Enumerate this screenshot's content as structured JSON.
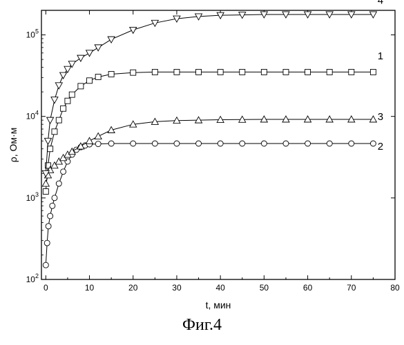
{
  "figure_caption": "Фиг.4",
  "chart_data": {
    "type": "scatter",
    "xlabel": "t, мин",
    "ylabel": "ρ, Ом·м",
    "xlim": [
      -1,
      80
    ],
    "ylim": [
      100,
      200000
    ],
    "yscale": "log",
    "x_ticks": [
      0,
      10,
      20,
      30,
      40,
      50,
      60,
      70,
      80
    ],
    "x_tick_labels": [
      "0",
      "10",
      "20",
      "30",
      "40",
      "50",
      "60",
      "70",
      "80"
    ],
    "y_ticks": [
      100,
      1000,
      10000,
      100000
    ],
    "y_tick_labels": [
      {
        "base": "10",
        "exp": "2"
      },
      {
        "base": "10",
        "exp": "3"
      },
      {
        "base": "10",
        "exp": "4"
      },
      {
        "base": "10",
        "exp": "5"
      }
    ],
    "grid": false,
    "series": [
      {
        "name": "1",
        "marker": "square",
        "label_x": 76,
        "label_y": 50000,
        "x": [
          0,
          0.5,
          1,
          2,
          3,
          4,
          5,
          6,
          8,
          10,
          12,
          15,
          20,
          25,
          30,
          35,
          40,
          45,
          50,
          55,
          60,
          65,
          70,
          75
        ],
        "y": [
          1200,
          2500,
          4000,
          6500,
          9000,
          12500,
          15500,
          18500,
          23500,
          27500,
          30500,
          33000,
          34500,
          35000,
          35000,
          35000,
          35000,
          35000,
          35000,
          35000,
          35000,
          35000,
          35000,
          35000
        ]
      },
      {
        "name": "2",
        "marker": "circle",
        "label_x": 76,
        "label_y": 3900,
        "x": [
          0,
          0.3,
          0.6,
          1,
          1.5,
          2,
          3,
          4,
          5,
          6,
          7,
          8,
          9,
          10,
          12,
          15,
          20,
          25,
          30,
          35,
          40,
          45,
          50,
          55,
          60,
          65,
          70,
          75
        ],
        "y": [
          150,
          280,
          450,
          600,
          800,
          1000,
          1500,
          2100,
          2800,
          3400,
          3900,
          4200,
          4400,
          4550,
          4600,
          4650,
          4650,
          4650,
          4650,
          4650,
          4650,
          4650,
          4650,
          4650,
          4650,
          4650,
          4650,
          4650
        ]
      },
      {
        "name": "3",
        "marker": "triangle-up",
        "label_x": 76,
        "label_y": 9000,
        "x": [
          0,
          0.5,
          1,
          2,
          3,
          4,
          5,
          6,
          8,
          10,
          12,
          15,
          20,
          25,
          30,
          35,
          40,
          45,
          50,
          55,
          60,
          65,
          70,
          75
        ],
        "y": [
          1500,
          1900,
          2200,
          2500,
          2800,
          3100,
          3400,
          3700,
          4300,
          5000,
          5700,
          6800,
          8000,
          8600,
          8900,
          9000,
          9100,
          9150,
          9200,
          9200,
          9200,
          9200,
          9200,
          9200
        ]
      },
      {
        "name": "4",
        "marker": "triangle-down",
        "label_x": 76,
        "label_y": 240000,
        "x": [
          0,
          0.5,
          1,
          2,
          3,
          4,
          5,
          6,
          8,
          10,
          12,
          15,
          20,
          25,
          30,
          35,
          40,
          45,
          50,
          55,
          60,
          65,
          70,
          75
        ],
        "y": [
          2000,
          5000,
          9000,
          16000,
          24000,
          32000,
          38000,
          44000,
          52000,
          60000,
          70000,
          88000,
          115000,
          140000,
          158000,
          168000,
          174000,
          176000,
          178000,
          178000,
          178000,
          178000,
          178000,
          178000
        ]
      }
    ]
  }
}
